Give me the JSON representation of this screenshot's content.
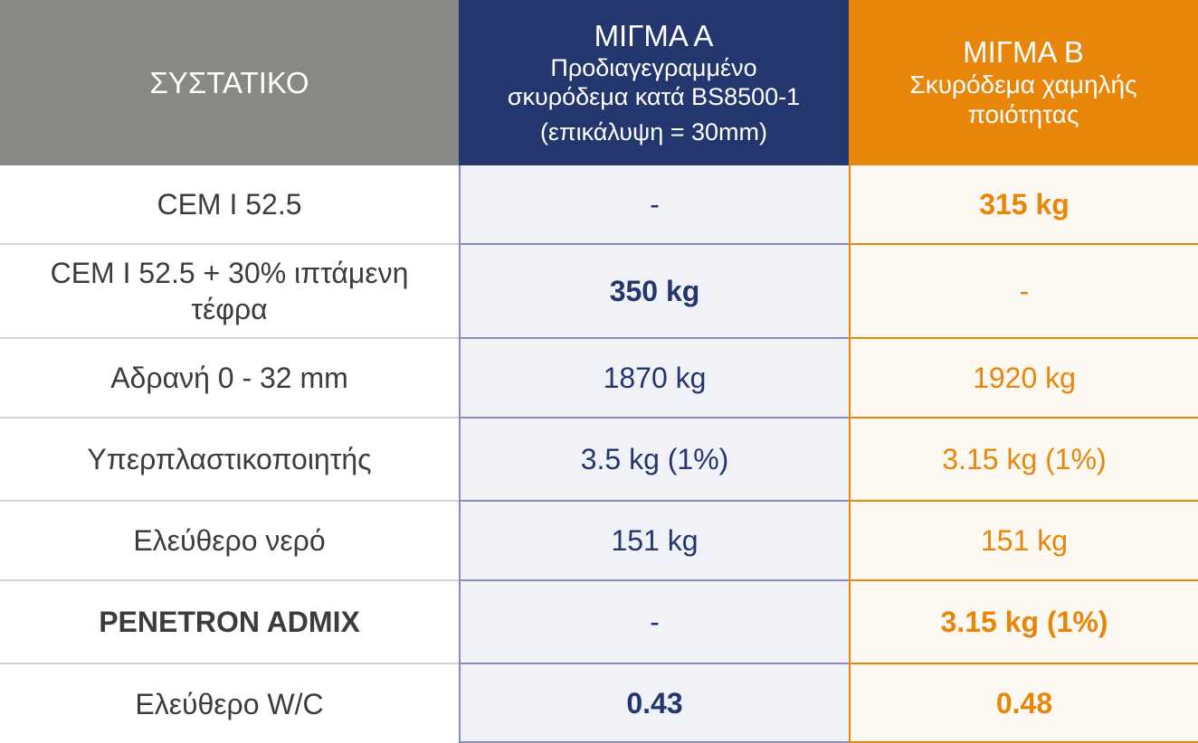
{
  "header": {
    "ingredient": "ΣΥΣΤΑΤΙΚΟ",
    "mix_a": {
      "title": "ΜΙΓΜΑ Α",
      "line1": "Προδιαγεγραμμένο",
      "line2": "σκυρόδεμα κατά  BS8500-1",
      "line3": "(επικάλυψη = 30mm)"
    },
    "mix_b": {
      "title": "ΜΙΓΜΑ Β",
      "line1": "Σκυρόδεμα χαμηλής",
      "line2": "ποιότητας"
    }
  },
  "rows": [
    {
      "ingredient": "CEM I 52.5",
      "a": "-",
      "b": "315 kg"
    },
    {
      "ingredient": "CEM I 52.5 + 30% ιπτάμενη τέφρα",
      "a": "350 kg",
      "b": "-"
    },
    {
      "ingredient": "Αδρανή 0 - 32 mm",
      "a": "1870 kg",
      "b": "1920 kg"
    },
    {
      "ingredient": "Υπερπλαστικοποιητής",
      "a": "3.5 kg (1%)",
      "b": "3.15 kg (1%)"
    },
    {
      "ingredient": "Ελεύθερο νερό",
      "a": "151 kg",
      "b": "151 kg"
    },
    {
      "ingredient": "PENETRON ADMIX",
      "a": "-",
      "b": "3.15 kg (1%)"
    },
    {
      "ingredient": "Ελεύθερο W/C",
      "a": "0.43",
      "b": "0.48"
    }
  ],
  "colors": {
    "header_ingredient": "#888885",
    "mix_a": "#24366e",
    "mix_b": "#e8860a"
  }
}
